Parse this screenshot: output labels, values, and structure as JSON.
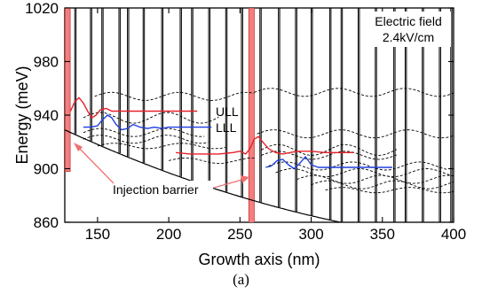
{
  "caption": "(a)",
  "chart_data": {
    "type": "line",
    "xlabel": "Growth axis (nm)",
    "ylabel": "Energy (meV)",
    "xlim": [
      127,
      400
    ],
    "ylim": [
      860,
      1020
    ],
    "xticks": [
      150,
      200,
      250,
      300,
      350,
      400
    ],
    "yticks": [
      860,
      900,
      940,
      980,
      1020
    ],
    "annotation_field": [
      "Electric field",
      "2.4kV/cm"
    ],
    "annotation_barrier": "Injection barrier",
    "colors": {
      "ull": "#e8202a",
      "lll": "#1f3fe0",
      "barrier_fill": "#f08080",
      "barrier_edge": "#d03030",
      "profile": "#000000"
    },
    "series": [
      {
        "name": "ULL",
        "color": "#e8202a",
        "segments": [
          {
            "x": [
              131,
              134,
              137,
              140,
              143,
              146,
              149,
              152,
              156,
              160,
              165,
              170,
              175,
              180,
              190,
              200,
              210,
              220
            ],
            "y": [
              943,
              950,
              953,
              949,
              943,
              938,
              940,
              944,
              945,
              943,
              943,
              943,
              943,
              943,
              943,
              943,
              943,
              943
            ]
          },
          {
            "x": [
              205,
              215,
              225,
              235,
              245,
              250,
              254,
              257,
              260,
              263,
              266,
              270,
              275,
              280,
              290,
              300,
              310,
              320,
              330
            ],
            "y": [
              912,
              911,
              911,
              911,
              912,
              913,
              911,
              915,
              922,
              924,
              920,
              915,
              912,
              911,
              913,
              913,
              912,
              912,
              912
            ]
          }
        ]
      },
      {
        "name": "LLL",
        "color": "#1f3fe0",
        "segments": [
          {
            "x": [
              140,
              145,
              150,
              153,
              157,
              160,
              163,
              167,
              171,
              175,
              180,
              185,
              190,
              195,
              200,
              210,
              220,
              230
            ],
            "y": [
              931,
              931,
              932,
              936,
              940,
              938,
              933,
              929,
              930,
              933,
              931,
              930,
              931,
              930,
              931,
              931,
              931,
              931
            ]
          },
          {
            "x": [
              268,
              272,
              276,
              280,
              284,
              288,
              292,
              296,
              300,
              305,
              310,
              318,
              325,
              335,
              345,
              357
            ],
            "y": [
              901,
              902,
              906,
              907,
              903,
              900,
              904,
              909,
              903,
              901,
              901,
              901,
              901,
              901,
              901,
              901
            ]
          }
        ]
      }
    ]
  }
}
